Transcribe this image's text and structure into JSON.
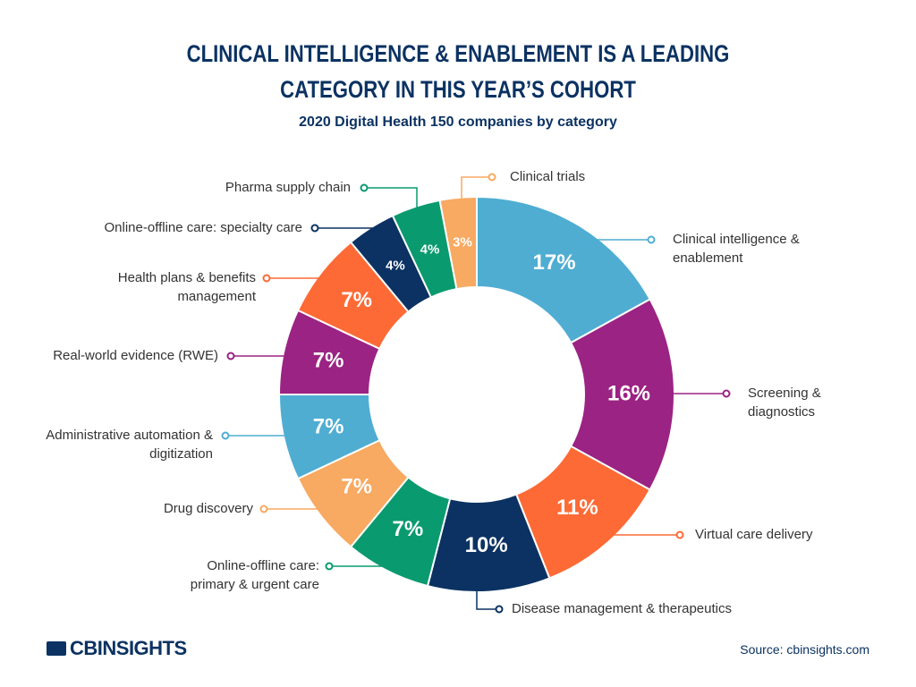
{
  "chart_data": {
    "type": "donut",
    "title": "CLINICAL INTELLIGENCE & ENABLEMENT IS A LEADING CATEGORY IN THIS YEAR’S COHORT",
    "subtitle": "2020 Digital Health 150 companies by category",
    "categories": [
      "Clinical intelligence & enablement",
      "Screening & diagnostics",
      "Virtual care delivery",
      "Disease management & therapeutics",
      "Online-offline care: primary & urgent care",
      "Drug discovery",
      "Administrative automation & digitization",
      "Real-world evidence (RWE)",
      "Health plans & benefits management",
      "Online-offline care: specialty care",
      "Pharma supply chain",
      "Clinical trials"
    ],
    "values": [
      17,
      16,
      11,
      10,
      7,
      7,
      7,
      7,
      7,
      4,
      4,
      3
    ],
    "value_labels": [
      "17%",
      "16%",
      "11%",
      "10%",
      "7%",
      "7%",
      "7%",
      "7%",
      "7%",
      "4%",
      "4%",
      "3%"
    ],
    "colors": [
      "#4fadd2",
      "#9b2383",
      "#fd6a35",
      "#0b3262",
      "#0a9a6f",
      "#f8a962",
      "#4fadd2",
      "#9b2383",
      "#fd6a35",
      "#0b3262",
      "#0a9a6f",
      "#f8a962"
    ],
    "logo": "CBINSIGHTS",
    "source": "Source: cbinsights.com"
  }
}
